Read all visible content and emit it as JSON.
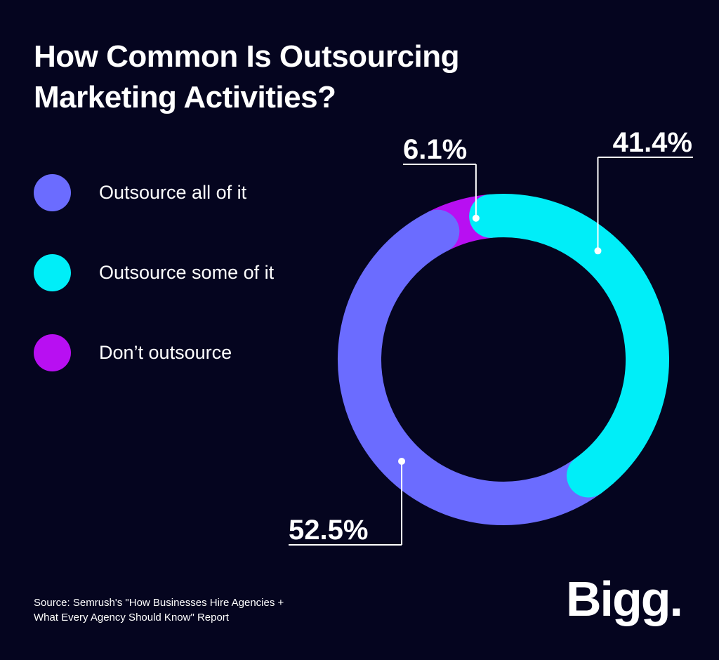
{
  "title_line1": "How Common Is Outsourcing",
  "title_line2": "Marketing Activities?",
  "chart_data": {
    "type": "pie",
    "variant": "donut",
    "title": "How Common Is Outsourcing Marketing Activities?",
    "legend_position": "left",
    "series": [
      {
        "name": "Outsource all of it",
        "value": 52.5,
        "label": "52.5%",
        "color": "#6b6cff"
      },
      {
        "name": "Outsource some of it",
        "value": 41.4,
        "label": "41.4%",
        "color": "#00eef8"
      },
      {
        "name": "Don't outsource",
        "value": 6.1,
        "label": "6.1%",
        "color": "#b80ff2"
      }
    ]
  },
  "legend": [
    {
      "label": "Outsource all of it",
      "color": "#6b6cff"
    },
    {
      "label": "Outsource some of it",
      "color": "#00eef8"
    },
    {
      "label": "Don’t outsource",
      "color": "#b80ff2"
    }
  ],
  "source_line1": "Source: Semrush's \"How Businesses Hire Agencies +",
  "source_line2": "What Every Agency Should Know\" Report",
  "logo_text": "Bigg.",
  "colors": {
    "background": "#05051f",
    "text": "#ffffff"
  }
}
